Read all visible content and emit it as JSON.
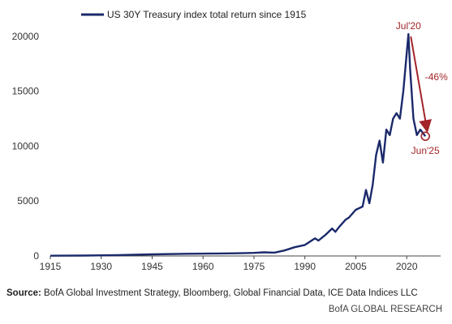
{
  "chart_data": {
    "type": "line",
    "series": [
      {
        "name": "US 30Y Treasury index total return since 1915",
        "color": "#1b2a6b",
        "x": [
          1915,
          1925,
          1935,
          1945,
          1955,
          1965,
          1970,
          1975,
          1978,
          1981,
          1984,
          1987,
          1990,
          1993,
          1994,
          1996,
          1998,
          1999,
          2000,
          2002,
          2003,
          2005,
          2007,
          2008,
          2009,
          2010,
          2011,
          2012,
          2013,
          2014,
          2015,
          2016,
          2017,
          2018,
          2019,
          2020.5,
          2021,
          2022,
          2023,
          2024,
          2025.5
        ],
        "y": [
          20,
          40,
          80,
          150,
          200,
          230,
          240,
          280,
          330,
          300,
          500,
          800,
          1000,
          1600,
          1400,
          1900,
          2500,
          2200,
          2600,
          3300,
          3500,
          4200,
          4500,
          6000,
          4800,
          6500,
          9200,
          10500,
          8500,
          11500,
          11000,
          12500,
          13000,
          12500,
          15000,
          20200,
          17000,
          12500,
          11000,
          11500,
          10900
        ]
      }
    ],
    "xticks": [
      "1915",
      "1930",
      "1945",
      "1960",
      "1975",
      "1990",
      "2005",
      "2020"
    ],
    "yticks": [
      "0",
      "5000",
      "10000",
      "15000",
      "20000"
    ],
    "xlim": [
      1915,
      2030
    ],
    "ylim": [
      0,
      20500
    ],
    "grid": false,
    "legend_position": "top-left",
    "annotations": {
      "peak_label": "Jul'20",
      "drop_label": "-46%",
      "trough_label": "Jun'25",
      "color": "#a3252a"
    }
  },
  "footer": {
    "source_label": "Source:",
    "source_text": " BofA Global Investment Strategy, Bloomberg, Global Financial Data, ICE Data Indices LLC",
    "brand": "BofA GLOBAL RESEARCH"
  }
}
